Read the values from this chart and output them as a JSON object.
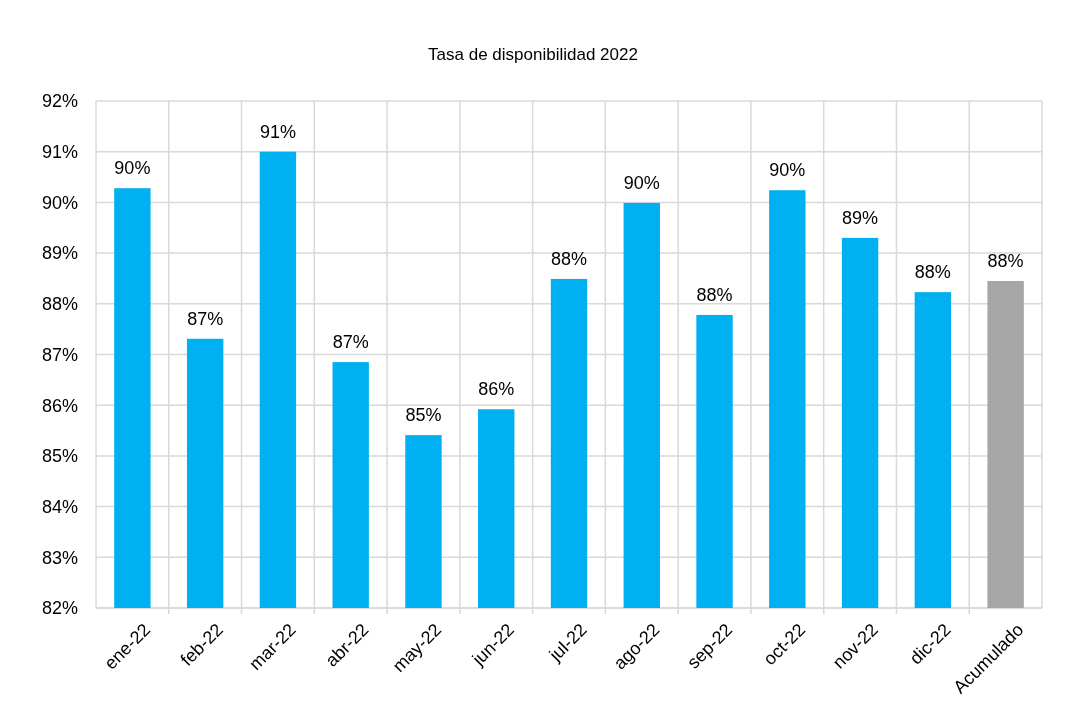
{
  "chart_data": {
    "type": "bar",
    "title": "Tasa de disponibilidad 2022",
    "categories": [
      "ene-22",
      "feb-22",
      "mar-22",
      "abr-22",
      "may-22",
      "jun-22",
      "jul-22",
      "ago-22",
      "sep-22",
      "oct-22",
      "nov-22",
      "dic-22",
      "Acumulado"
    ],
    "values": [
      90.28,
      87.31,
      91.0,
      86.85,
      85.41,
      85.92,
      88.49,
      89.99,
      87.78,
      90.24,
      89.3,
      88.23,
      88.45
    ],
    "colors": [
      "#00b0f0",
      "#00b0f0",
      "#00b0f0",
      "#00b0f0",
      "#00b0f0",
      "#00b0f0",
      "#00b0f0",
      "#00b0f0",
      "#00b0f0",
      "#00b0f0",
      "#00b0f0",
      "#00b0f0",
      "#a6a6a6"
    ],
    "value_labels": [
      "90%",
      "87%",
      "91%",
      "87%",
      "85%",
      "86%",
      "88%",
      "90%",
      "88%",
      "90%",
      "89%",
      "88%",
      "88%"
    ],
    "ylim": [
      82,
      92
    ],
    "yticks": [
      {
        "value": 82,
        "label": "82%"
      },
      {
        "value": 83,
        "label": "83%"
      },
      {
        "value": 84,
        "label": "84%"
      },
      {
        "value": 85,
        "label": "85%"
      },
      {
        "value": 86,
        "label": "86%"
      },
      {
        "value": 87,
        "label": "87%"
      },
      {
        "value": 88,
        "label": "88%"
      },
      {
        "value": 89,
        "label": "89%"
      },
      {
        "value": 90,
        "label": "90%"
      },
      {
        "value": 91,
        "label": "91%"
      },
      {
        "value": 92,
        "label": "92%"
      }
    ],
    "grid": true
  }
}
